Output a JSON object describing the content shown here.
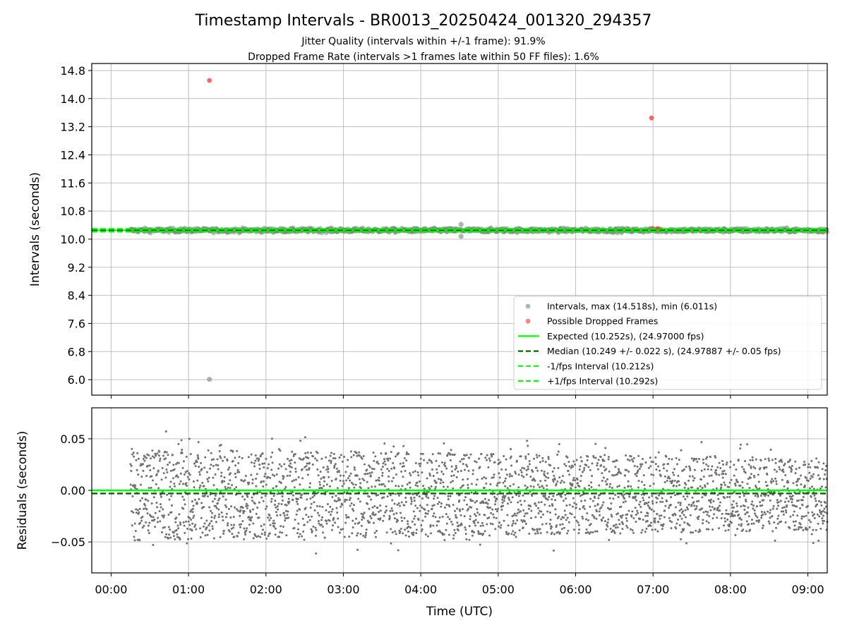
{
  "chart_data": [
    {
      "type": "scatter",
      "title": "Timestamp Intervals - BR0013_20250424_001320_294357",
      "subtitle_lines": [
        "Jitter Quality (intervals within +/-1 frame): 91.9%",
        "Dropped Frame Rate (intervals >1 frames late within 50 FF files): 1.6%"
      ],
      "xlabel": "",
      "ylabel": "Intervals (seconds)",
      "xlim_hours": [
        -0.25,
        9.25
      ],
      "ylim": [
        5.56,
        15.0
      ],
      "y_ticks": [
        6.0,
        6.8,
        7.6,
        8.4,
        9.2,
        10.0,
        10.8,
        11.6,
        12.4,
        13.2,
        14.0,
        14.8
      ],
      "y_tick_labels": [
        "6.0",
        "6.8",
        "7.6",
        "8.4",
        "9.2",
        "10.0",
        "10.8",
        "11.6",
        "12.4",
        "13.2",
        "14.0",
        "14.8"
      ],
      "grid": true,
      "legend_position": "lower-right",
      "legend": [
        {
          "label": "Intervals, max (14.518s), min (6.011s)",
          "kind": "marker",
          "color": "#808080"
        },
        {
          "label": "Possible Dropped Frames",
          "kind": "marker",
          "color": "#ff3333"
        },
        {
          "label": "Expected (10.252s), (24.97000 fps)",
          "kind": "solid",
          "color": "#00ff00"
        },
        {
          "label": "Median (10.249 +/- 0.022 s), (24.97887 +/- 0.05 fps)",
          "kind": "dashed",
          "color": "#006400"
        },
        {
          "label": "-1/fps Interval (10.212s)",
          "kind": "dashed",
          "color": "#00ff00"
        },
        {
          "label": "+1/fps Interval (10.292s)",
          "kind": "dashed",
          "color": "#00ff00"
        }
      ],
      "series": [
        {
          "name": "Intervals, max (14.518s), min (6.011s)",
          "color": "#808080",
          "x_hours_range": [
            0.25,
            9.25
          ],
          "y_center": 10.252,
          "y_spread": 0.03,
          "outliers": [
            [
              1.27,
              6.011
            ],
            [
              4.52,
              10.42
            ],
            [
              4.52,
              10.08
            ]
          ]
        },
        {
          "name": "Possible Dropped Frames",
          "color": "#ff3333",
          "points": [
            [
              1.27,
              14.518
            ],
            [
              6.98,
              13.45
            ],
            [
              7.0,
              10.29
            ],
            [
              7.03,
              10.28
            ],
            [
              7.06,
              10.3
            ],
            [
              7.1,
              10.28
            ]
          ]
        }
      ],
      "lines": [
        {
          "name": "Expected",
          "y": 10.252,
          "style": "solid",
          "color": "#00ff00"
        },
        {
          "name": "Median",
          "y": 10.249,
          "style": "dashed",
          "color": "#006400"
        },
        {
          "name": "-1/fps Interval",
          "y": 10.212,
          "style": "dashed",
          "color": "#00ff00"
        },
        {
          "name": "+1/fps Interval",
          "y": 10.292,
          "style": "dashed",
          "color": "#00ff00"
        }
      ]
    },
    {
      "type": "scatter",
      "xlabel": "Time (UTC)",
      "ylabel": "Residuals (seconds)",
      "xlim_hours": [
        -0.25,
        9.25
      ],
      "ylim": [
        -0.08,
        0.08
      ],
      "y_ticks": [
        -0.05,
        0.0,
        0.05
      ],
      "y_tick_labels": [
        "−0.05",
        "0.00",
        "0.05"
      ],
      "x_ticks_hours": [
        0,
        1,
        2,
        3,
        4,
        5,
        6,
        7,
        8,
        9
      ],
      "x_tick_labels": [
        "00:00",
        "01:00",
        "02:00",
        "03:00",
        "04:00",
        "05:00",
        "06:00",
        "07:00",
        "08:00",
        "09:00"
      ],
      "grid": true,
      "series": [
        {
          "name": "Residuals",
          "color": "#707070",
          "x_hours_range": [
            0.25,
            9.25
          ],
          "y_range": [
            -0.075,
            0.063
          ],
          "y_envelope_start": 0.045,
          "y_envelope_end": 0.035,
          "point_count": 2900
        }
      ],
      "lines": [
        {
          "name": "Expected",
          "y": 0.0,
          "style": "solid",
          "color": "#00ff00"
        },
        {
          "name": "Median",
          "y": -0.003,
          "style": "dashed",
          "color": "#006400"
        }
      ]
    }
  ]
}
